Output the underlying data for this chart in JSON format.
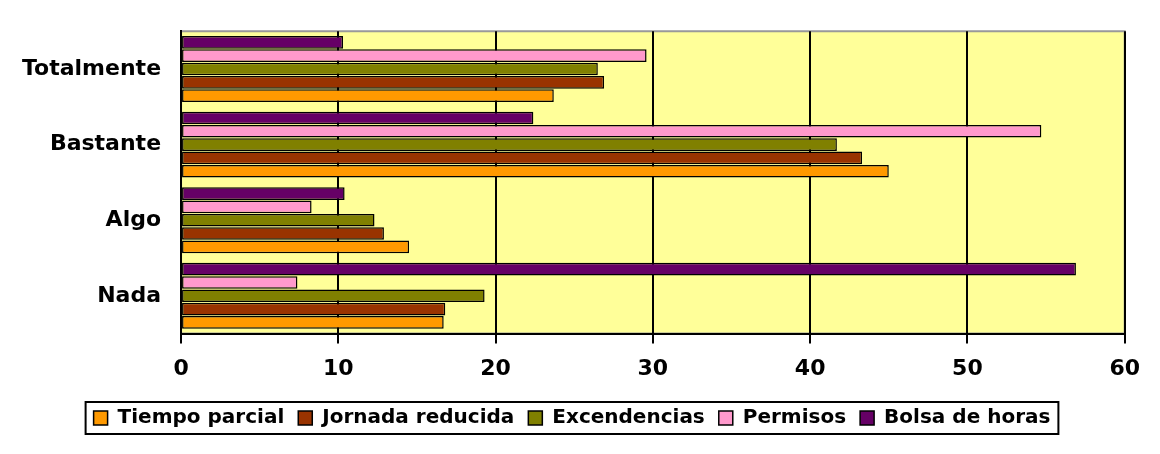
{
  "chart_data": {
    "type": "bar",
    "orientation": "horizontal",
    "categories": [
      "Totalmente",
      "Bastante",
      "Algo",
      "Nada"
    ],
    "series": [
      {
        "name": "Tiempo parcial",
        "color": "#ff9900",
        "values": [
          23.7,
          45.0,
          14.5,
          16.7
        ]
      },
      {
        "name": "Jornada reducida",
        "color": "#993300",
        "values": [
          26.9,
          43.3,
          12.9,
          16.8
        ]
      },
      {
        "name": "Excendencias",
        "color": "#808000",
        "values": [
          26.5,
          41.7,
          12.3,
          19.3
        ]
      },
      {
        "name": "Permisos",
        "color": "#ff99cc",
        "values": [
          29.6,
          54.7,
          8.3,
          7.4
        ]
      },
      {
        "name": "Bolsa de horas",
        "color": "#660066",
        "values": [
          10.3,
          22.4,
          10.4,
          56.9
        ]
      }
    ],
    "xlim": [
      0,
      60
    ],
    "xticks": [
      0,
      10,
      20,
      30,
      40,
      50,
      60
    ],
    "grid": "x",
    "legend": "bottom"
  }
}
